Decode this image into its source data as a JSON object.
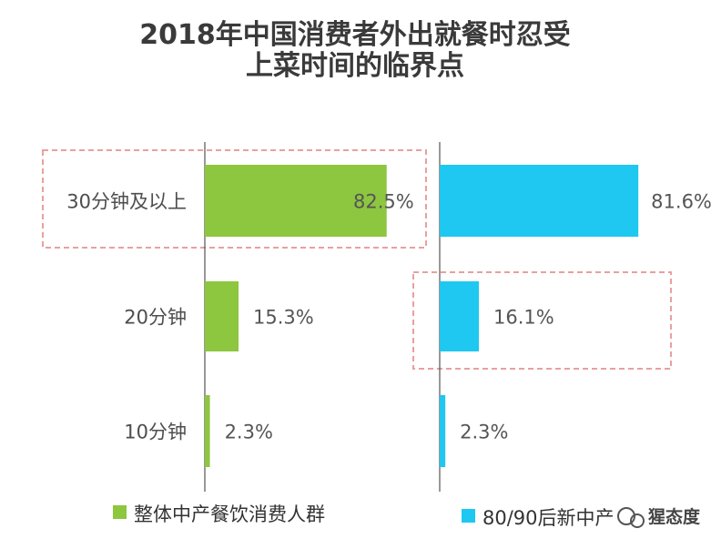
{
  "chart_data": {
    "type": "bar",
    "orientation": "horizontal",
    "title_lines": [
      "2018年中国消费者外出就餐时忍受",
      "上菜时间的临界点"
    ],
    "categories": [
      "30分钟及以上",
      "20分钟",
      "10分钟"
    ],
    "series": [
      {
        "name": "整体中产餐饮消费人群",
        "color": "#8dc63f",
        "values": [
          82.5,
          15.3,
          2.3
        ],
        "labels": [
          "82.5%",
          "15.3%",
          "2.3%"
        ]
      },
      {
        "name": "80/90后新中产",
        "color": "#1ec8f0",
        "values": [
          81.6,
          16.1,
          2.3
        ],
        "labels": [
          "81.6%",
          "16.1%",
          "2.3%"
        ]
      }
    ],
    "highlights": [
      {
        "series": 0,
        "category": 0
      },
      {
        "series": 1,
        "category": 1
      }
    ],
    "highlight_color": "#e8a0a0",
    "axis_color": "#555555",
    "grid": false,
    "legend_position": "bottom"
  },
  "watermark": {
    "text": "猩态度",
    "icon": "wechat-icon"
  }
}
